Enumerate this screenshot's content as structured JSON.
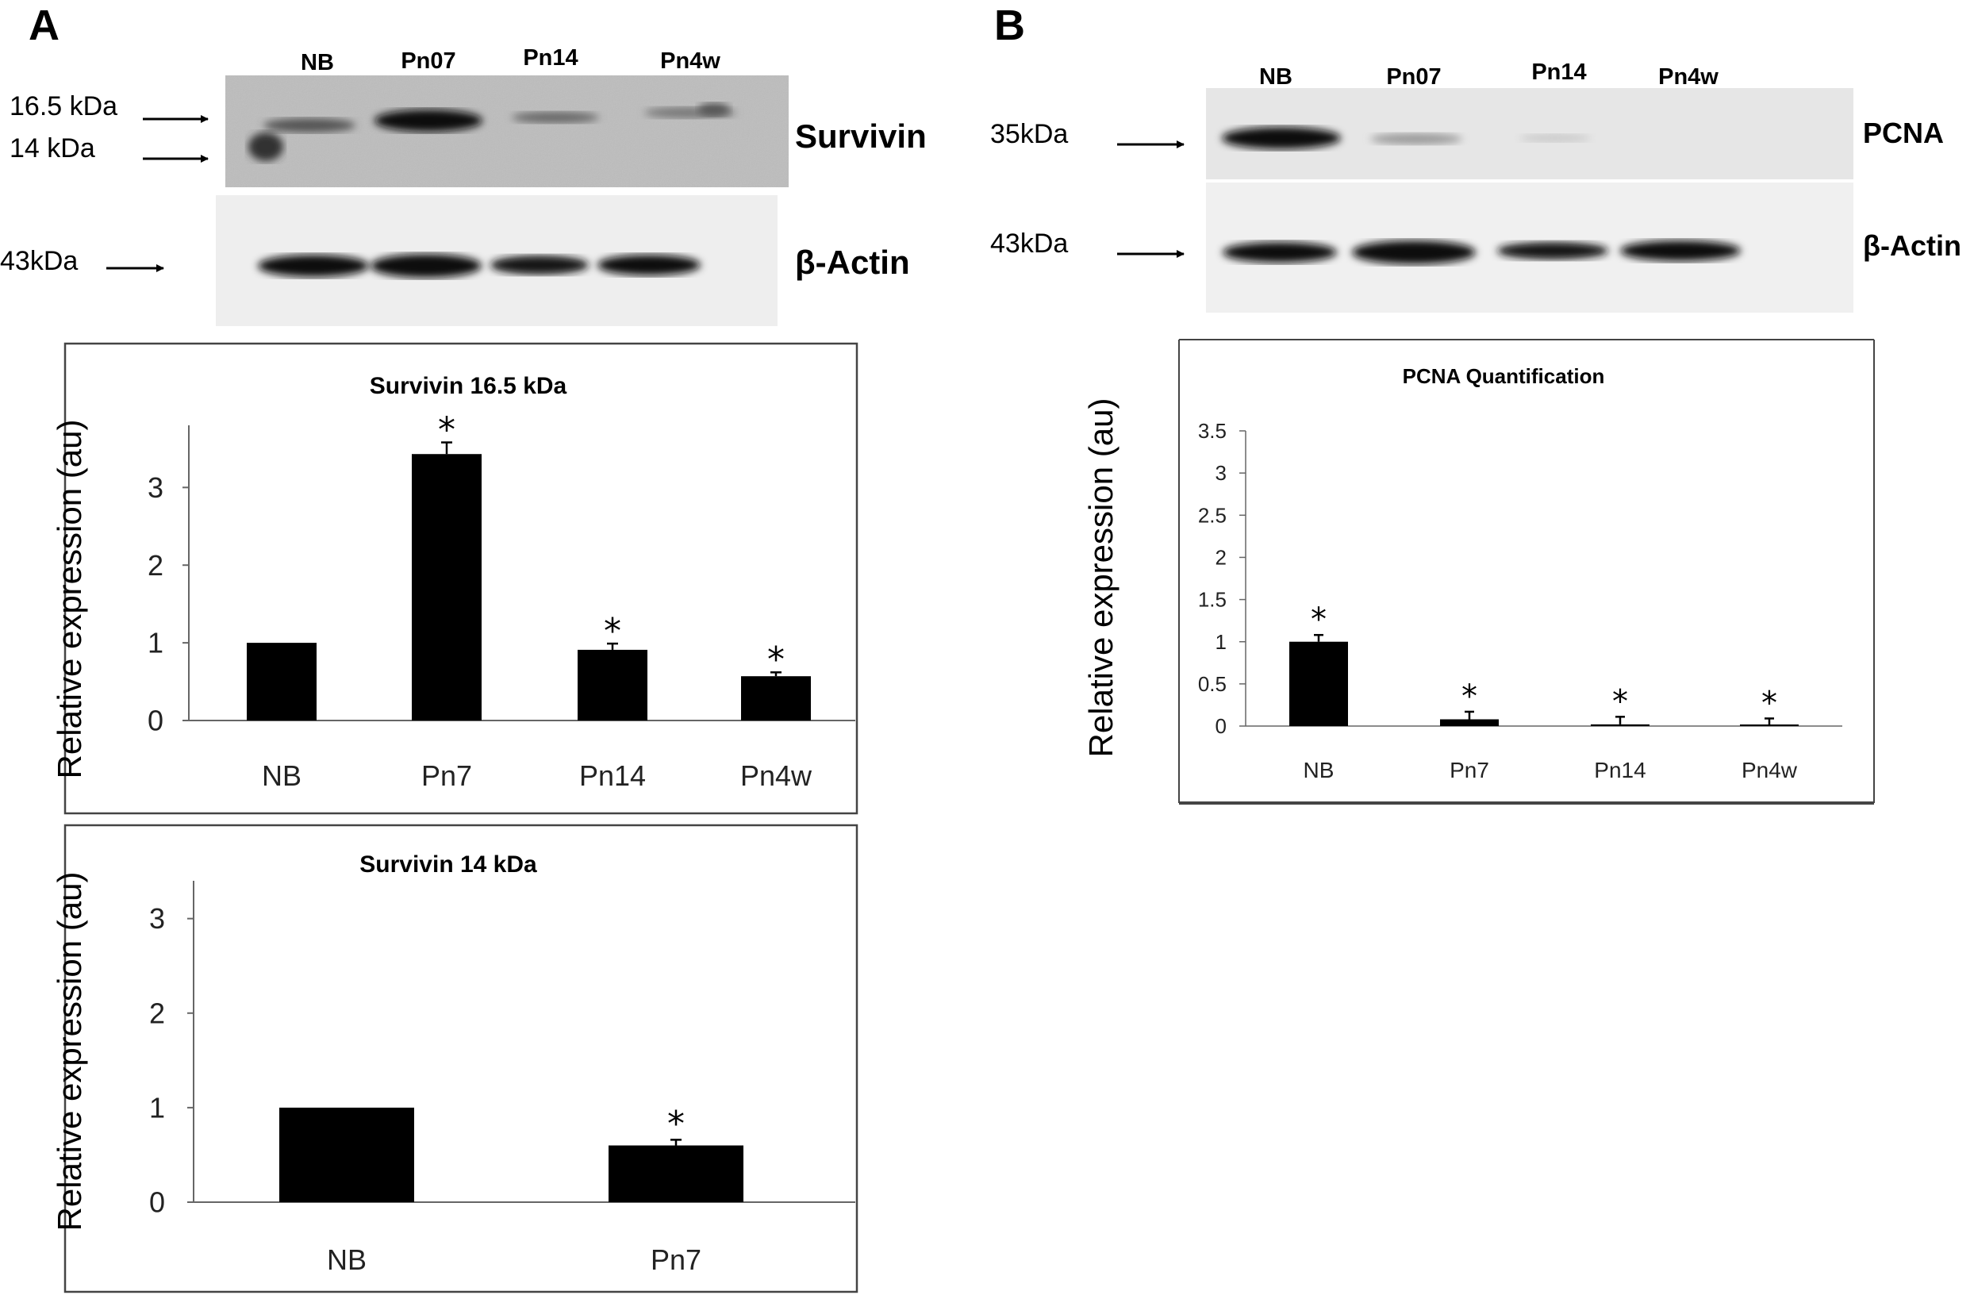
{
  "panels": {
    "a": {
      "letter": "A",
      "blot": {
        "lanes": [
          "NB",
          "Pn07",
          "Pn14",
          "Pn4w"
        ],
        "markers": [
          "16.5 kDa",
          "14 kDa",
          "43kDa"
        ],
        "protein_labels": [
          "Survivin",
          "β-Actin"
        ]
      }
    },
    "b": {
      "letter": "B",
      "blot": {
        "lanes": [
          "NB",
          "Pn07",
          "Pn14",
          "Pn4w"
        ],
        "markers": [
          "35kDa",
          "43kDa"
        ],
        "protein_labels": [
          "PCNA",
          "β-Actin"
        ]
      }
    }
  },
  "chart_data": [
    {
      "type": "bar",
      "title": "Survivin 16.5 kDa",
      "xlabel": "",
      "ylabel": "Relative expression (au)",
      "categories": [
        "NB",
        "Pn7",
        "Pn14",
        "Pn4w"
      ],
      "values": [
        1.0,
        3.43,
        0.91,
        0.57
      ],
      "errors": [
        0,
        0.15,
        0.08,
        0.05
      ],
      "significance": [
        "",
        "*",
        "*",
        "*"
      ],
      "ylim": [
        0,
        3.8
      ],
      "yticks": [
        "0",
        "1",
        "2",
        "3"
      ],
      "bar_color": "#000000",
      "grid": false
    },
    {
      "type": "bar",
      "title": "Survivin 14 kDa",
      "xlabel": "",
      "ylabel": "Relative expression (au)",
      "categories": [
        "NB",
        "Pn7"
      ],
      "values": [
        1.0,
        0.6
      ],
      "errors": [
        0,
        0.06
      ],
      "significance": [
        "",
        "*"
      ],
      "ylim": [
        0,
        3.4
      ],
      "yticks": [
        "0",
        "1",
        "2",
        "3"
      ],
      "bar_color": "#000000",
      "grid": false
    },
    {
      "type": "bar",
      "title": "PCNA Quantification",
      "xlabel": "",
      "ylabel": "Relative expression (au)",
      "categories": [
        "NB",
        "Pn7",
        "Pn14",
        "Pn4w"
      ],
      "values": [
        1.0,
        0.08,
        0.02,
        0.01
      ],
      "errors": [
        0.08,
        0.09,
        0.09,
        0.08
      ],
      "significance": [
        "*",
        "*",
        "*",
        "*"
      ],
      "ylim": [
        0,
        3.5
      ],
      "yticks": [
        "0",
        "0.5",
        "1",
        "1.5",
        "2",
        "2.5",
        "3",
        "3.5"
      ],
      "bar_color": "#000000",
      "grid": false
    }
  ]
}
